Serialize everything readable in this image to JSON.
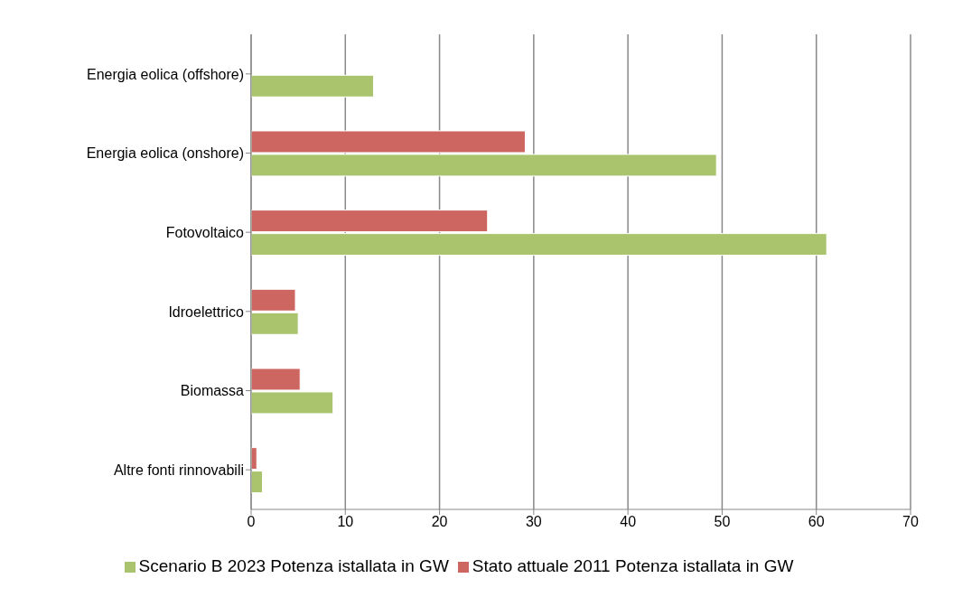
{
  "chart_data": {
    "type": "bar",
    "orientation": "horizontal",
    "categories": [
      "Energia eolica (offshore)",
      "Energia eolica (onshore)",
      "Fotovoltaico",
      "Idroelettrico",
      "Biomassa",
      "Altre fonti rinnovabili"
    ],
    "series": [
      {
        "name": "Stato attuale 2011 Potenza istallata in GW",
        "color": "#cd6660",
        "values": [
          0,
          29.1,
          25.1,
          4.7,
          5.2,
          0.6
        ]
      },
      {
        "name": "Scenario B 2023 Potenza istallata in GW",
        "color": "#a9c46c",
        "values": [
          13.0,
          49.4,
          61.1,
          5.0,
          8.7,
          1.2
        ]
      }
    ],
    "xlim": [
      0,
      70
    ],
    "xticks": [
      0,
      10,
      20,
      30,
      40,
      50,
      60,
      70
    ],
    "grid": "x",
    "legend": "bottom"
  }
}
